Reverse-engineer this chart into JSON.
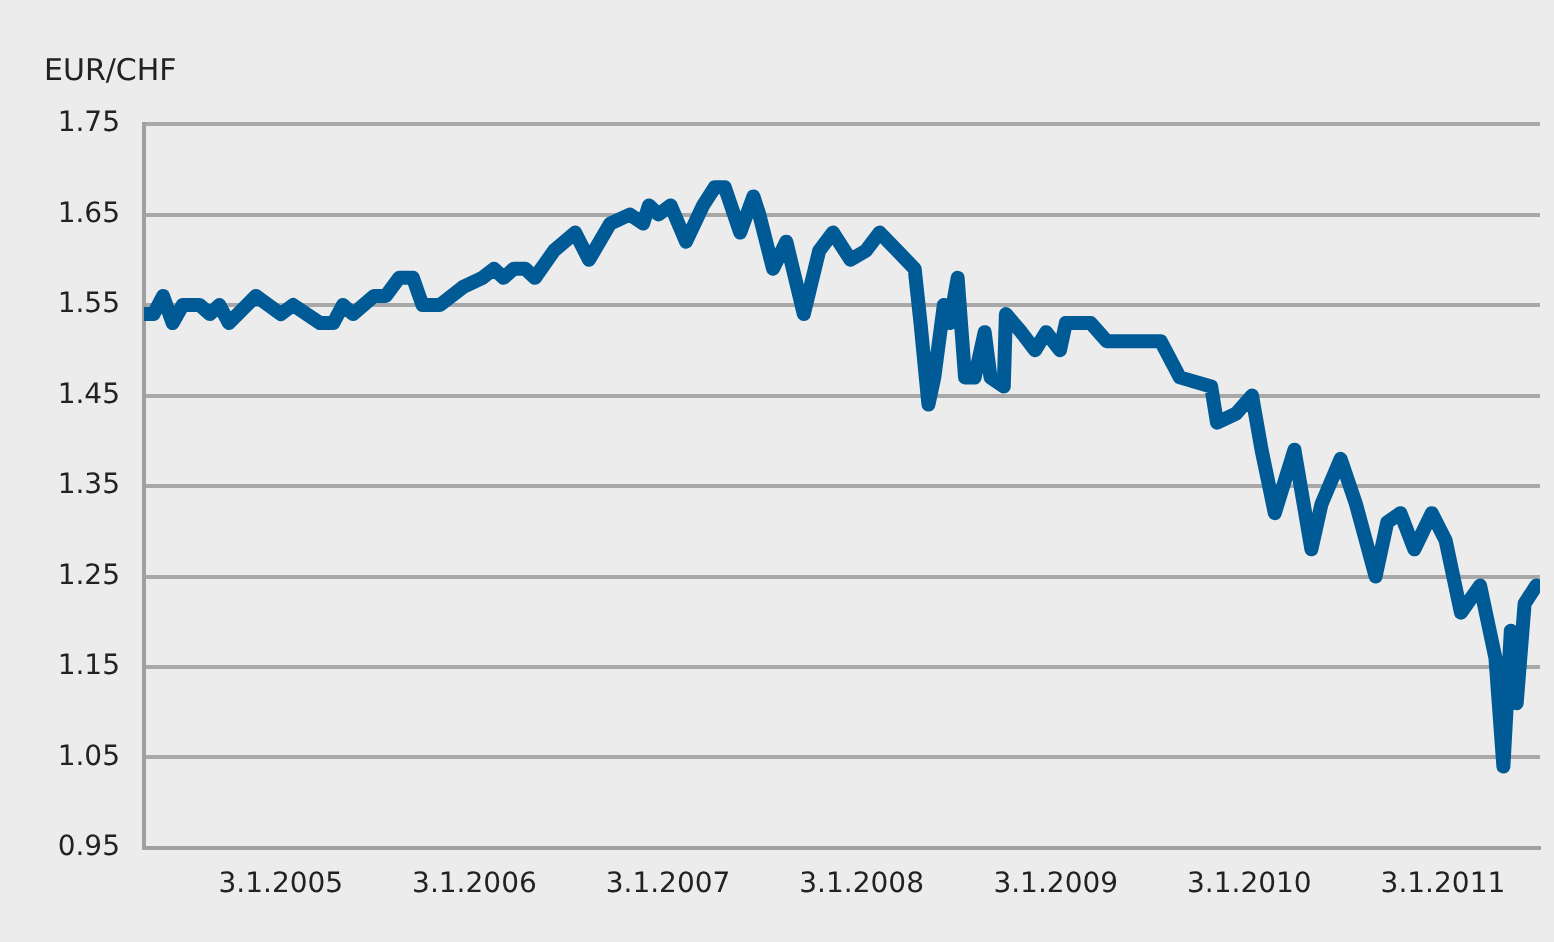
{
  "chart_data": {
    "type": "line",
    "ylabel": "EUR/CHF",
    "x": [
      "2004-04-20",
      "2004-05-08",
      "2004-05-26",
      "2004-06-13",
      "2004-07-02",
      "2004-08-03",
      "2004-08-22",
      "2004-09-09",
      "2004-09-27",
      "2004-11-17",
      "2005-01-03",
      "2005-01-26",
      "2005-03-18",
      "2005-04-12",
      "2005-04-30",
      "2005-05-19",
      "2005-06-28",
      "2005-07-20",
      "2005-08-14",
      "2005-09-09",
      "2005-09-27",
      "2005-10-30",
      "2005-12-13",
      "2006-01-18",
      "2006-02-09",
      "2006-02-27",
      "2006-03-18",
      "2006-04-09",
      "2006-04-27",
      "2006-06-02",
      "2006-07-12",
      "2006-08-07",
      "2006-09-16",
      "2006-10-23",
      "2006-11-17",
      "2006-11-28",
      "2006-12-16",
      "2007-01-08",
      "2007-02-06",
      "2007-03-10",
      "2007-04-01",
      "2007-04-20",
      "2007-05-19",
      "2007-06-13",
      "2007-06-24",
      "2007-07-20",
      "2007-08-14",
      "2007-09-16",
      "2007-10-15",
      "2007-11-10",
      "2007-12-13",
      "2008-01-11",
      "2008-02-06",
      "2008-03-10",
      "2008-04-12",
      "2008-04-23",
      "2008-05-08",
      "2008-05-19",
      "2008-06-06",
      "2008-06-17",
      "2008-07-02",
      "2008-07-16",
      "2008-08-03",
      "2008-08-22",
      "2008-09-02",
      "2008-09-27",
      "2008-10-01",
      "2008-10-30",
      "2008-11-25",
      "2008-12-16",
      "2009-01-11",
      "2009-01-22",
      "2009-03-10",
      "2009-04-09",
      "2009-06-13",
      "2009-07-20",
      "2009-08-25",
      "2009-10-23",
      "2009-11-03",
      "2009-12-09",
      "2010-01-08",
      "2010-01-26",
      "2010-02-20",
      "2010-03-29",
      "2010-04-30",
      "2010-05-19",
      "2010-06-24",
      "2010-07-23",
      "2010-08-29",
      "2010-09-20",
      "2010-10-15",
      "2010-11-10",
      "2010-12-13",
      "2011-01-08",
      "2011-02-06",
      "2011-03-14",
      "2011-04-12",
      "2011-04-27",
      "2011-05-11",
      "2011-05-22",
      "2011-06-06",
      "2011-06-28"
    ],
    "series": [
      {
        "color": "#005a96",
        "values": [
          1.54,
          1.54,
          1.56,
          1.53,
          1.55,
          1.55,
          1.54,
          1.55,
          1.53,
          1.56,
          1.54,
          1.55,
          1.53,
          1.53,
          1.55,
          1.54,
          1.56,
          1.56,
          1.58,
          1.58,
          1.55,
          1.55,
          1.57,
          1.58,
          1.59,
          1.58,
          1.59,
          1.59,
          1.58,
          1.61,
          1.63,
          1.6,
          1.64,
          1.65,
          1.64,
          1.66,
          1.65,
          1.66,
          1.62,
          1.66,
          1.68,
          1.68,
          1.63,
          1.67,
          1.65,
          1.59,
          1.62,
          1.54,
          1.61,
          1.63,
          1.6,
          1.61,
          1.63,
          1.61,
          1.59,
          1.53,
          1.44,
          1.47,
          1.55,
          1.53,
          1.58,
          1.47,
          1.47,
          1.52,
          1.47,
          1.46,
          1.54,
          1.52,
          1.5,
          1.52,
          1.5,
          1.53,
          1.53,
          1.51,
          1.51,
          1.51,
          1.47,
          1.46,
          1.42,
          1.43,
          1.45,
          1.39,
          1.32,
          1.39,
          1.28,
          1.33,
          1.38,
          1.33,
          1.25,
          1.31,
          1.32,
          1.28,
          1.32,
          1.29,
          1.21,
          1.24,
          1.16,
          1.04,
          1.19,
          1.11,
          1.22,
          1.24
        ]
      }
    ],
    "xlim": [
      "2004-04-20",
      "2011-07-05"
    ],
    "xticks": [
      {
        "value": "2005-01-03",
        "label": "3.1.2005"
      },
      {
        "value": "2006-01-03",
        "label": "3.1.2006"
      },
      {
        "value": "2007-01-03",
        "label": "3.1.2007"
      },
      {
        "value": "2008-01-03",
        "label": "3.1.2008"
      },
      {
        "value": "2009-01-03",
        "label": "3.1.2009"
      },
      {
        "value": "2010-01-03",
        "label": "3.1.2010"
      },
      {
        "value": "2011-01-03",
        "label": "3.1.2011"
      }
    ],
    "ylim": [
      0.95,
      1.75
    ],
    "yticks": [
      {
        "value": 0.95,
        "label": "0.95"
      },
      {
        "value": 1.05,
        "label": "1.05"
      },
      {
        "value": 1.15,
        "label": "1.15"
      },
      {
        "value": 1.25,
        "label": "1.25"
      },
      {
        "value": 1.35,
        "label": "1.35"
      },
      {
        "value": 1.45,
        "label": "1.45"
      },
      {
        "value": 1.55,
        "label": "1.55"
      },
      {
        "value": 1.65,
        "label": "1.65"
      },
      {
        "value": 1.75,
        "label": "1.75"
      }
    ],
    "grid": "y",
    "legend": false,
    "marker": "none",
    "line_style": "solid"
  }
}
